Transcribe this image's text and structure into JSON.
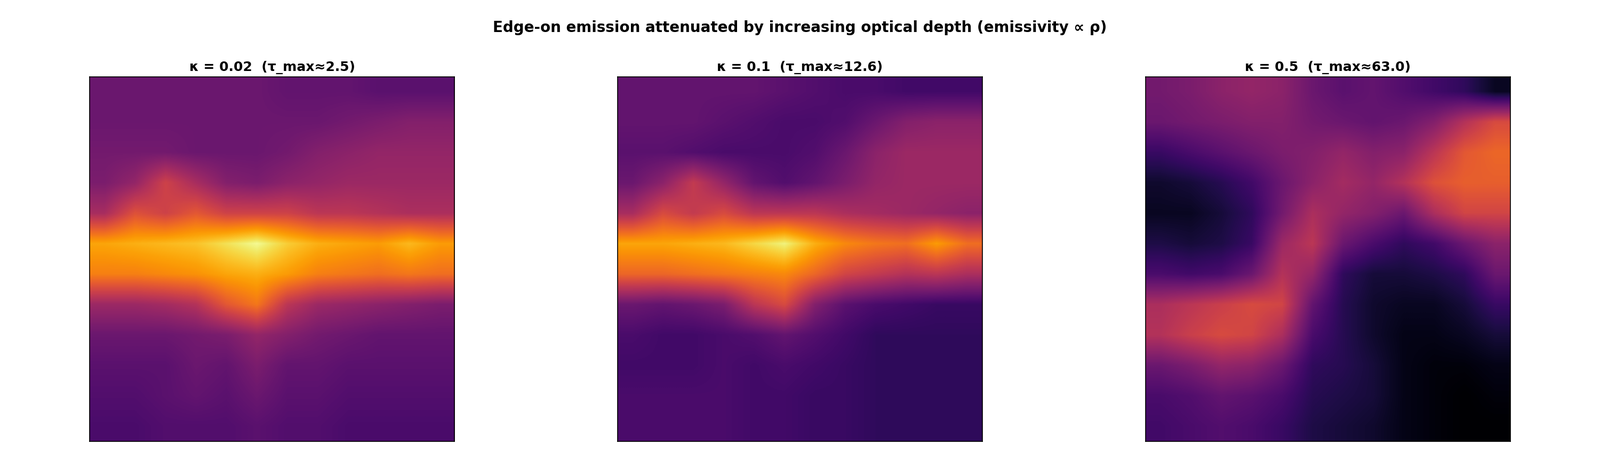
{
  "title": "Edge-on emission attenuated by increasing optical depth (emissivity ∝ ρ)",
  "chart_data": [
    {
      "type": "heatmap",
      "title": "κ = 0.02  (τ_max≈2.5)",
      "color": "inferno",
      "tick_labels": false,
      "zlim": [
        0,
        1
      ],
      "cells": [
        [
          0.3,
          0.3,
          0.3,
          0.3,
          0.3,
          0.3,
          0.28,
          0.28,
          0.28,
          0.26,
          0.26,
          0.26
        ],
        [
          0.3,
          0.3,
          0.3,
          0.3,
          0.3,
          0.3,
          0.3,
          0.3,
          0.32,
          0.34,
          0.36,
          0.36
        ],
        [
          0.32,
          0.32,
          0.32,
          0.3,
          0.3,
          0.3,
          0.32,
          0.36,
          0.38,
          0.4,
          0.4,
          0.4
        ],
        [
          0.34,
          0.4,
          0.55,
          0.45,
          0.36,
          0.34,
          0.38,
          0.4,
          0.42,
          0.42,
          0.42,
          0.42
        ],
        [
          0.45,
          0.6,
          0.55,
          0.62,
          0.55,
          0.55,
          0.55,
          0.5,
          0.5,
          0.48,
          0.46,
          0.46
        ],
        [
          0.8,
          0.82,
          0.84,
          0.86,
          0.92,
          0.98,
          0.88,
          0.82,
          0.8,
          0.78,
          0.84,
          0.78
        ],
        [
          0.72,
          0.72,
          0.74,
          0.76,
          0.8,
          0.82,
          0.78,
          0.72,
          0.7,
          0.68,
          0.7,
          0.68
        ],
        [
          0.42,
          0.42,
          0.44,
          0.48,
          0.62,
          0.7,
          0.5,
          0.42,
          0.4,
          0.38,
          0.36,
          0.34
        ],
        [
          0.3,
          0.3,
          0.3,
          0.32,
          0.34,
          0.4,
          0.36,
          0.32,
          0.3,
          0.28,
          0.28,
          0.28
        ],
        [
          0.26,
          0.26,
          0.26,
          0.3,
          0.28,
          0.34,
          0.28,
          0.28,
          0.26,
          0.26,
          0.26,
          0.26
        ],
        [
          0.24,
          0.24,
          0.26,
          0.28,
          0.26,
          0.3,
          0.26,
          0.26,
          0.24,
          0.24,
          0.24,
          0.24
        ],
        [
          0.22,
          0.22,
          0.24,
          0.24,
          0.24,
          0.26,
          0.24,
          0.24,
          0.22,
          0.22,
          0.22,
          0.22
        ]
      ]
    },
    {
      "type": "heatmap",
      "title": "κ = 0.1  (τ_max≈12.6)",
      "color": "inferno",
      "tick_labels": false,
      "zlim": [
        0,
        1
      ],
      "cells": [
        [
          0.28,
          0.28,
          0.28,
          0.28,
          0.28,
          0.26,
          0.24,
          0.22,
          0.22,
          0.2,
          0.2,
          0.2
        ],
        [
          0.28,
          0.28,
          0.28,
          0.26,
          0.24,
          0.22,
          0.22,
          0.24,
          0.3,
          0.36,
          0.38,
          0.38
        ],
        [
          0.26,
          0.26,
          0.24,
          0.22,
          0.22,
          0.22,
          0.24,
          0.3,
          0.38,
          0.42,
          0.42,
          0.42
        ],
        [
          0.3,
          0.38,
          0.52,
          0.4,
          0.28,
          0.24,
          0.28,
          0.34,
          0.4,
          0.42,
          0.42,
          0.42
        ],
        [
          0.45,
          0.58,
          0.52,
          0.58,
          0.5,
          0.5,
          0.5,
          0.46,
          0.44,
          0.42,
          0.4,
          0.38
        ],
        [
          0.8,
          0.8,
          0.82,
          0.84,
          0.9,
          0.96,
          0.82,
          0.74,
          0.7,
          0.68,
          0.78,
          0.68
        ],
        [
          0.66,
          0.66,
          0.68,
          0.7,
          0.72,
          0.74,
          0.66,
          0.56,
          0.52,
          0.48,
          0.5,
          0.46
        ],
        [
          0.3,
          0.28,
          0.3,
          0.34,
          0.5,
          0.58,
          0.36,
          0.26,
          0.22,
          0.2,
          0.18,
          0.18
        ],
        [
          0.22,
          0.2,
          0.2,
          0.22,
          0.24,
          0.28,
          0.24,
          0.2,
          0.16,
          0.16,
          0.16,
          0.16
        ],
        [
          0.2,
          0.2,
          0.2,
          0.22,
          0.2,
          0.22,
          0.2,
          0.18,
          0.16,
          0.16,
          0.16,
          0.16
        ],
        [
          0.22,
          0.22,
          0.22,
          0.22,
          0.2,
          0.2,
          0.18,
          0.18,
          0.16,
          0.16,
          0.16,
          0.16
        ],
        [
          0.22,
          0.22,
          0.22,
          0.22,
          0.2,
          0.2,
          0.18,
          0.18,
          0.16,
          0.16,
          0.16,
          0.16
        ]
      ]
    },
    {
      "type": "heatmap",
      "title": "κ = 0.5  (τ_max≈63.0)",
      "color": "inferno",
      "tick_labels": false,
      "zlim": [
        0,
        1
      ],
      "cells": [
        [
          0.32,
          0.34,
          0.38,
          0.4,
          0.38,
          0.3,
          0.26,
          0.28,
          0.24,
          0.2,
          0.16,
          0.06
        ],
        [
          0.3,
          0.32,
          0.34,
          0.36,
          0.36,
          0.32,
          0.3,
          0.28,
          0.3,
          0.36,
          0.48,
          0.58
        ],
        [
          0.18,
          0.22,
          0.26,
          0.3,
          0.34,
          0.36,
          0.4,
          0.36,
          0.38,
          0.5,
          0.62,
          0.66
        ],
        [
          0.08,
          0.1,
          0.14,
          0.2,
          0.3,
          0.38,
          0.44,
          0.4,
          0.48,
          0.6,
          0.64,
          0.64
        ],
        [
          0.06,
          0.06,
          0.1,
          0.16,
          0.32,
          0.46,
          0.4,
          0.36,
          0.3,
          0.46,
          0.56,
          0.56
        ],
        [
          0.12,
          0.1,
          0.12,
          0.18,
          0.42,
          0.5,
          0.3,
          0.22,
          0.16,
          0.2,
          0.3,
          0.38
        ],
        [
          0.22,
          0.2,
          0.22,
          0.3,
          0.48,
          0.4,
          0.16,
          0.1,
          0.1,
          0.12,
          0.16,
          0.3
        ],
        [
          0.46,
          0.5,
          0.54,
          0.58,
          0.56,
          0.28,
          0.14,
          0.08,
          0.06,
          0.06,
          0.1,
          0.18
        ],
        [
          0.48,
          0.54,
          0.58,
          0.56,
          0.46,
          0.22,
          0.14,
          0.08,
          0.04,
          0.04,
          0.06,
          0.1
        ],
        [
          0.3,
          0.34,
          0.4,
          0.38,
          0.3,
          0.16,
          0.14,
          0.1,
          0.04,
          0.02,
          0.02,
          0.04
        ],
        [
          0.22,
          0.24,
          0.28,
          0.26,
          0.22,
          0.14,
          0.12,
          0.1,
          0.04,
          0.02,
          0.0,
          0.02
        ],
        [
          0.2,
          0.22,
          0.24,
          0.22,
          0.18,
          0.12,
          0.1,
          0.08,
          0.04,
          0.02,
          0.0,
          0.0
        ]
      ]
    }
  ]
}
